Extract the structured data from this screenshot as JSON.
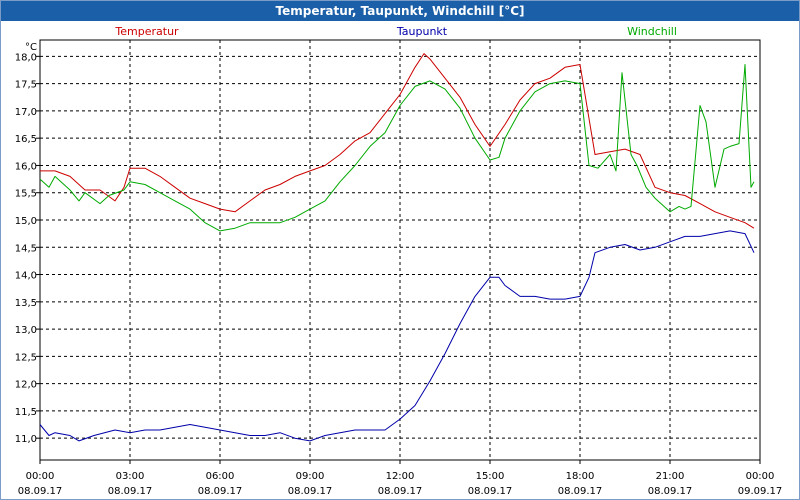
{
  "window": {
    "title": "Temperatur, Taupunkt, Windchill [°C]"
  },
  "chart_data": {
    "type": "line",
    "title": "Temperatur, Taupunkt, Windchill [°C]",
    "ylabel": "°C",
    "ylim": [
      10.6,
      18.3
    ],
    "xlim": [
      0,
      24
    ],
    "grid": true,
    "legend": "top",
    "y_ticks": [
      "11,0",
      "11,5",
      "12,0",
      "12,5",
      "13,0",
      "13,5",
      "14,0",
      "14,5",
      "15,0",
      "15,5",
      "16,0",
      "16,5",
      "17,0",
      "17,5",
      "18,0"
    ],
    "y_tick_values": [
      11.0,
      11.5,
      12.0,
      12.5,
      13.0,
      13.5,
      14.0,
      14.5,
      15.0,
      15.5,
      16.0,
      16.5,
      17.0,
      17.5,
      18.0
    ],
    "x_ticks": [
      {
        "time": "00:00",
        "date": "08.09.17"
      },
      {
        "time": "03:00",
        "date": "08.09.17"
      },
      {
        "time": "06:00",
        "date": "08.09.17"
      },
      {
        "time": "09:00",
        "date": "08.09.17"
      },
      {
        "time": "12:00",
        "date": "08.09.17"
      },
      {
        "time": "15:00",
        "date": "08.09.17"
      },
      {
        "time": "18:00",
        "date": "08.09.17"
      },
      {
        "time": "21:00",
        "date": "08.09.17"
      },
      {
        "time": "00:00",
        "date": "09.09.17"
      }
    ],
    "x_tick_values": [
      0,
      3,
      6,
      9,
      12,
      15,
      18,
      21,
      24
    ],
    "series": [
      {
        "name": "Temperatur",
        "color": "#cc0000",
        "x": [
          0,
          0.5,
          1,
          1.5,
          2,
          2.5,
          2.8,
          3,
          3.5,
          4,
          4.5,
          5,
          5.5,
          6,
          6.5,
          7,
          7.5,
          8,
          8.5,
          9,
          9.5,
          10,
          10.5,
          11,
          11.5,
          12,
          12.5,
          12.8,
          13,
          13.5,
          14,
          14.5,
          15,
          15.5,
          16,
          16.5,
          17,
          17.5,
          18,
          18.5,
          19,
          19.5,
          20,
          20.5,
          21,
          21.5,
          22,
          22.5,
          23,
          23.5,
          23.8
        ],
        "values": [
          15.9,
          15.9,
          15.8,
          15.55,
          15.55,
          15.35,
          15.6,
          15.95,
          15.95,
          15.8,
          15.6,
          15.4,
          15.3,
          15.2,
          15.15,
          15.35,
          15.55,
          15.65,
          15.8,
          15.9,
          16.0,
          16.2,
          16.45,
          16.6,
          16.95,
          17.3,
          17.8,
          18.05,
          17.95,
          17.6,
          17.25,
          16.75,
          16.35,
          16.75,
          17.2,
          17.5,
          17.6,
          17.8,
          17.85,
          16.2,
          16.25,
          16.3,
          16.2,
          15.6,
          15.5,
          15.45,
          15.3,
          15.15,
          15.05,
          14.95,
          14.85
        ]
      },
      {
        "name": "Taupunkt",
        "color": "#0000aa",
        "x": [
          0,
          0.3,
          0.5,
          1,
          1.3,
          1.8,
          2.5,
          3,
          3.5,
          4,
          4.5,
          5,
          5.5,
          6,
          6.5,
          7,
          7.5,
          8,
          8.5,
          9,
          9.5,
          10,
          10.5,
          11,
          11.5,
          12,
          12.5,
          13,
          13.5,
          14,
          14.5,
          15,
          15.3,
          15.5,
          16,
          16.5,
          17,
          17.5,
          18,
          18.3,
          18.5,
          19,
          19.5,
          20,
          20.5,
          21,
          21.5,
          22,
          22.5,
          23,
          23.5,
          23.8
        ],
        "values": [
          11.25,
          11.05,
          11.1,
          11.05,
          10.95,
          11.05,
          11.15,
          11.1,
          11.15,
          11.15,
          11.2,
          11.25,
          11.2,
          11.15,
          11.1,
          11.05,
          11.05,
          11.1,
          11.0,
          10.95,
          11.05,
          11.1,
          11.15,
          11.15,
          11.15,
          11.35,
          11.6,
          12.05,
          12.55,
          13.1,
          13.6,
          13.95,
          13.95,
          13.8,
          13.6,
          13.6,
          13.55,
          13.55,
          13.6,
          13.95,
          14.4,
          14.5,
          14.55,
          14.45,
          14.5,
          14.6,
          14.7,
          14.7,
          14.75,
          14.8,
          14.75,
          14.4
        ]
      },
      {
        "name": "Windchill",
        "color": "#00aa00",
        "x": [
          0,
          0.3,
          0.5,
          1,
          1.3,
          1.5,
          2,
          2.3,
          2.8,
          3,
          3.5,
          4,
          4.5,
          5,
          5.5,
          6,
          6.5,
          7,
          7.5,
          8,
          8.5,
          9,
          9.5,
          10,
          10.5,
          11,
          11.5,
          12,
          12.5,
          13,
          13.5,
          14,
          14.5,
          15,
          15.3,
          15.5,
          16,
          16.5,
          17,
          17.5,
          18,
          18.3,
          18.6,
          19,
          19.2,
          19.4,
          19.7,
          19.9,
          20.2,
          20.5,
          21,
          21.3,
          21.5,
          21.7,
          22,
          22.2,
          22.5,
          22.8,
          23,
          23.3,
          23.5,
          23.7,
          23.8
        ],
        "values": [
          15.75,
          15.6,
          15.8,
          15.55,
          15.35,
          15.5,
          15.3,
          15.45,
          15.55,
          15.7,
          15.65,
          15.5,
          15.35,
          15.2,
          14.95,
          14.8,
          14.85,
          14.95,
          14.95,
          14.95,
          15.05,
          15.2,
          15.35,
          15.7,
          16.0,
          16.35,
          16.6,
          17.1,
          17.45,
          17.55,
          17.4,
          17.05,
          16.5,
          16.1,
          16.15,
          16.5,
          17.0,
          17.35,
          17.5,
          17.55,
          17.5,
          16.0,
          15.95,
          16.2,
          15.9,
          17.7,
          16.2,
          16.0,
          15.6,
          15.4,
          15.15,
          15.25,
          15.2,
          15.25,
          17.1,
          16.8,
          15.6,
          16.3,
          16.35,
          16.4,
          17.85,
          15.6,
          15.7
        ]
      }
    ]
  }
}
